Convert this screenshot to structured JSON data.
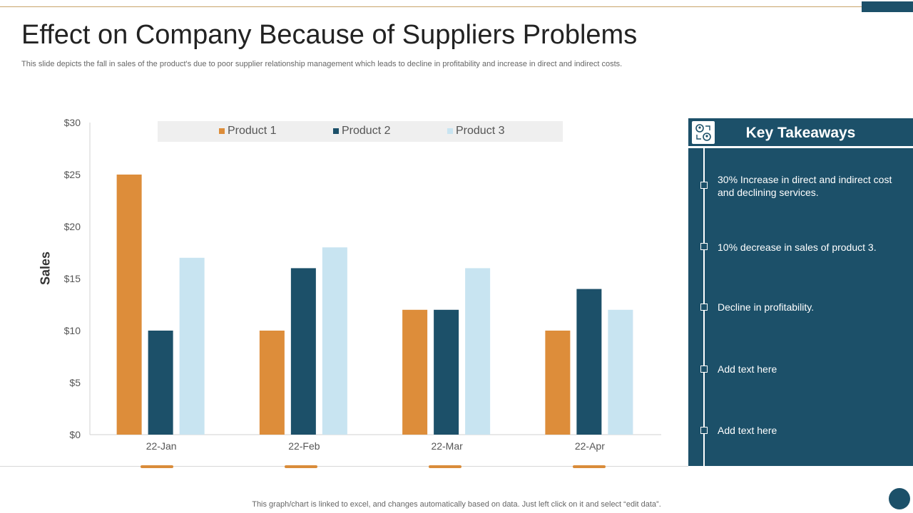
{
  "slide": {
    "title": "Effect on Company Because of Suppliers Problems",
    "subtitle": "This slide depicts the fall in sales of the product's due to poor supplier relationship management which leads to decline in profitability and increase in direct and indirect costs.",
    "footer": "This graph/chart is linked to excel,  and changes automatically based on data. Just left click on it and select “edit data”."
  },
  "colors": {
    "product1": "#dd8d3a",
    "product2": "#1c5069",
    "product3": "#c8e4f1",
    "panel": "#1c5069"
  },
  "chart_data": {
    "type": "bar",
    "categories": [
      "22-Jan",
      "22-Feb",
      "22-Mar",
      "22-Apr"
    ],
    "series": [
      {
        "name": "Product 1",
        "values": [
          25,
          10,
          12,
          10
        ]
      },
      {
        "name": "Product 2",
        "values": [
          10,
          16,
          12,
          14
        ]
      },
      {
        "name": "Product 3",
        "values": [
          17,
          18,
          16,
          12
        ]
      }
    ],
    "ylabel": "Sales",
    "xlabel": "",
    "ylim": [
      0,
      30
    ],
    "yticks": [
      "$0",
      "$5",
      "$10",
      "$15",
      "$20",
      "$25",
      "$30"
    ],
    "legend_position": "top",
    "grid": false
  },
  "takeaways": {
    "title": "Key Takeaways",
    "icon": "people-exchange-icon",
    "items": [
      "30% Increase in direct and indirect cost and declining services.",
      "10% decrease in sales of product 3.",
      "Decline in profitability.",
      "Add text here",
      "Add text here"
    ]
  }
}
